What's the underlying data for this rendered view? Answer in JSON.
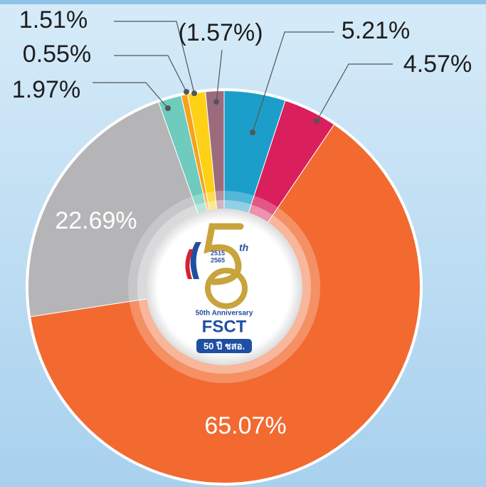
{
  "chart_data": {
    "type": "pie",
    "categories": [
      null,
      null,
      null,
      null,
      null,
      null,
      null,
      null
    ],
    "values": [
      5.21,
      4.57,
      65.07,
      22.69,
      1.97,
      0.55,
      1.51,
      -1.57
    ],
    "value_labels": [
      "5.21%",
      "4.57%",
      "65.07%",
      "22.69%",
      "1.97%",
      "0.55%",
      "1.51%",
      "(1.57%)"
    ],
    "colors": [
      "#1b9fca",
      "#d91f5c",
      "#f26a30",
      "#b5b5b8",
      "#6ecbbd",
      "#f7a21b",
      "#fcd116",
      "#9b6b7d"
    ],
    "logo_texts": [
      "2515",
      "2565",
      "th",
      "50th Anniversary",
      "FSCT",
      "50 ปี ชสอ."
    ]
  }
}
